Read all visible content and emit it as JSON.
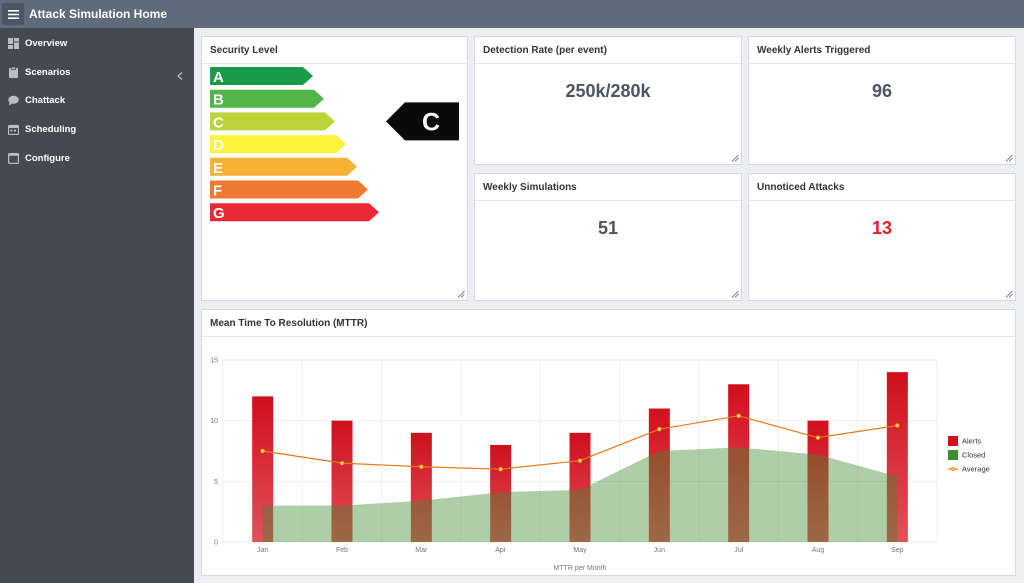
{
  "header": {
    "title": "Attack Simulation Home"
  },
  "sidebar": {
    "items": [
      {
        "label": "Overview",
        "icon": "dashboard-icon"
      },
      {
        "label": "Scenarios",
        "icon": "clipboard-icon",
        "expandable": true
      },
      {
        "label": "Chattack",
        "icon": "chat-bubble-icon"
      },
      {
        "label": "Scheduling",
        "icon": "calendar-icon"
      },
      {
        "label": "Configure",
        "icon": "window-icon"
      }
    ]
  },
  "security_level": {
    "title": "Security Level",
    "current": "C",
    "grades": [
      {
        "letter": "A",
        "color": "#1a9b47"
      },
      {
        "letter": "B",
        "color": "#52b548"
      },
      {
        "letter": "C",
        "color": "#bcd43a"
      },
      {
        "letter": "D",
        "color": "#fef23a"
      },
      {
        "letter": "E",
        "color": "#f8b134"
      },
      {
        "letter": "F",
        "color": "#f07932"
      },
      {
        "letter": "G",
        "color": "#e92a36"
      }
    ]
  },
  "stats": {
    "detection": {
      "title": "Detection Rate (per event)",
      "value": "250k/280k"
    },
    "alerts": {
      "title": "Weekly Alerts Triggered",
      "value": "96"
    },
    "simulations": {
      "title": "Weekly Simulations",
      "value": "51"
    },
    "unnoticed": {
      "title": "Unnoticed Attacks",
      "value": "13",
      "color": "#e11d2a"
    }
  },
  "mttr": {
    "title": "Mean Time To Resolution (MTTR)"
  },
  "chart_data": {
    "type": "bar",
    "categories": [
      "Jan",
      "Feb",
      "Mar",
      "Apr",
      "May",
      "Jun",
      "Jul",
      "Aug",
      "Sep"
    ],
    "series": [
      {
        "name": "Alerts",
        "type": "bar",
        "color": "#d0141f",
        "values": [
          12,
          10,
          9,
          8,
          9,
          11,
          13,
          10,
          14
        ]
      },
      {
        "name": "Closed",
        "type": "area",
        "color": "#3d8b2f",
        "values": [
          3,
          3,
          3.4,
          4.1,
          4.3,
          7.5,
          7.8,
          7.2,
          5.4
        ]
      },
      {
        "name": "Average",
        "type": "line",
        "color": "#e5781c",
        "values": [
          7.5,
          6.5,
          6.2,
          6.0,
          6.7,
          9.3,
          10.4,
          8.6,
          9.6
        ]
      }
    ],
    "yticks": [
      0,
      5,
      10,
      15
    ],
    "ylim": [
      0,
      15
    ],
    "xlabel": "MTTR per Month",
    "ylabel": "",
    "grid": true,
    "legend": "right"
  }
}
